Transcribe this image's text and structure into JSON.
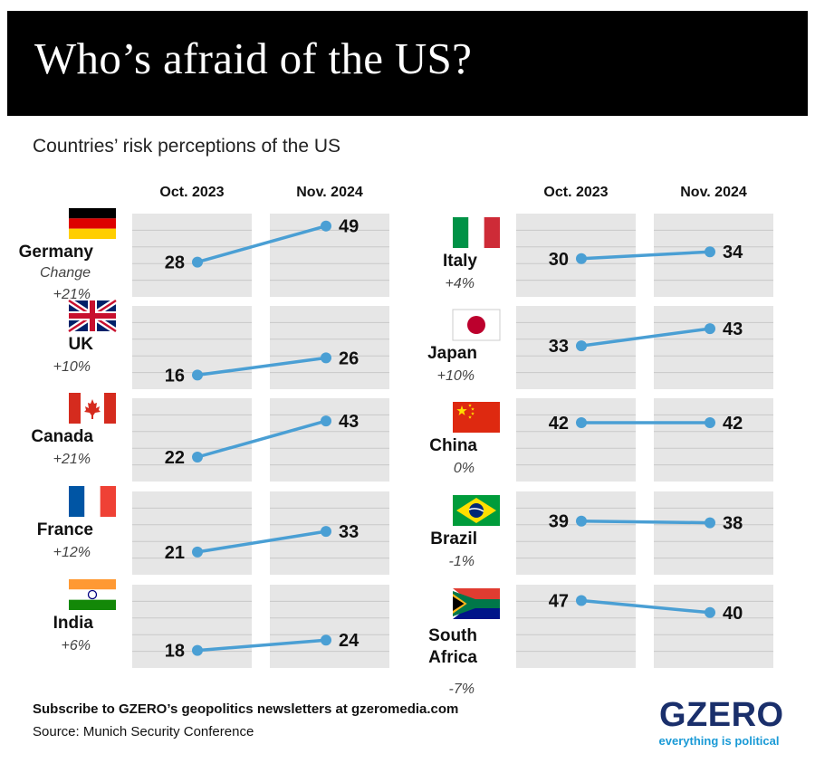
{
  "title": "Who’s afraid of the US?",
  "subtitle": "Countries’ risk perceptions of the US",
  "footer": {
    "subscribe": "Subscribe to GZERO’s geopolitics newsletters at gzeromedia.com",
    "source": "Source: Munich Security Conference"
  },
  "logo": {
    "wordmark": "GZERO",
    "tagline": "everything is political"
  },
  "colors": {
    "line": "#4a9fd4",
    "panel": "#e6e6e6",
    "grid": "#c9c9c9",
    "title_bg": "#000000"
  },
  "chart_data": {
    "type": "line",
    "categories": [
      "Oct. 2023",
      "Nov. 2024"
    ],
    "change_label": "Change",
    "panels": [
      {
        "country": "Germany",
        "flag": "germany-flag",
        "values": [
          28,
          49
        ],
        "change": "+21%"
      },
      {
        "country": "UK",
        "flag": "uk-flag",
        "values": [
          16,
          26
        ],
        "change": "+10%"
      },
      {
        "country": "Canada",
        "flag": "canada-flag",
        "values": [
          22,
          43
        ],
        "change": "+21%"
      },
      {
        "country": "France",
        "flag": "france-flag",
        "values": [
          21,
          33
        ],
        "change": "+12%"
      },
      {
        "country": "India",
        "flag": "india-flag",
        "values": [
          18,
          24
        ],
        "change": "+6%"
      },
      {
        "country": "Italy",
        "flag": "italy-flag",
        "values": [
          30,
          34
        ],
        "change": "+4%"
      },
      {
        "country": "Japan",
        "flag": "japan-flag",
        "values": [
          33,
          43
        ],
        "change": "+10%"
      },
      {
        "country": "China",
        "flag": "china-flag",
        "values": [
          42,
          42
        ],
        "change": "0%"
      },
      {
        "country": "Brazil",
        "flag": "brazil-flag",
        "values": [
          39,
          38
        ],
        "change": "-1%"
      },
      {
        "country": "South Africa",
        "flag": "south-africa-flag",
        "values": [
          47,
          40
        ],
        "change": "-7%"
      }
    ],
    "ylim": [
      12,
      52
    ],
    "grid": true
  }
}
